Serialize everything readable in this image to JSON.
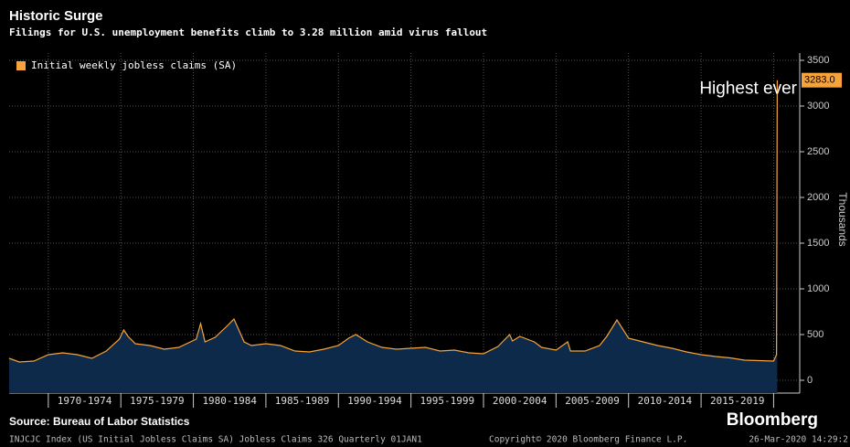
{
  "chart_data": {
    "type": "area",
    "title": "Historic Surge",
    "subtitle": "Filings for U.S. unemployment benefits climb to 3.28 million amid virus fallout",
    "y_axis_label": "Thousands",
    "source": "Source: Bureau of Labor Statistics",
    "brand": "Bloomberg",
    "footer_left": "INJCJC Index (US Initial Jobless Claims SA) Jobless Claims 326  Quarterly 01JAN1",
    "footer_center": "Copyright© 2020 Bloomberg Finance L.P.",
    "footer_right": "26-Mar-2020 14:29:2",
    "annotation": "Highest ever",
    "legend": "top-left",
    "grid": true,
    "series": [
      {
        "name": "Initial weekly jobless claims (SA)",
        "color": "#f5a33a",
        "fill": "#0e2a4a",
        "x": [
          1967.3,
          1968,
          1969,
          1970,
          1971,
          1972,
          1973,
          1974,
          1974.9,
          1975.2,
          1975.5,
          1976,
          1977,
          1978,
          1979,
          1980.2,
          1980.5,
          1980.8,
          1981.5,
          1982.3,
          1982.8,
          1983.5,
          1984,
          1985,
          1986,
          1987,
          1988,
          1989,
          1990,
          1990.7,
          1991.2,
          1992,
          1993,
          1994,
          1995,
          1996,
          1997,
          1998,
          1999,
          2000,
          2001,
          2001.8,
          2002,
          2002.5,
          2003.5,
          2004,
          2005,
          2005.8,
          2006,
          2007,
          2008,
          2008.5,
          2009.2,
          2010,
          2011,
          2012,
          2013,
          2014,
          2015,
          2016,
          2017,
          2018,
          2019,
          2020,
          2020.2,
          2020.25
        ],
        "values": [
          240,
          200,
          210,
          280,
          300,
          280,
          240,
          320,
          450,
          550,
          480,
          400,
          380,
          340,
          360,
          450,
          620,
          420,
          470,
          590,
          670,
          420,
          380,
          400,
          380,
          320,
          310,
          340,
          380,
          460,
          500,
          420,
          360,
          340,
          350,
          360,
          320,
          330,
          300,
          290,
          370,
          500,
          430,
          480,
          420,
          360,
          330,
          420,
          320,
          320,
          380,
          480,
          660,
          460,
          420,
          380,
          350,
          310,
          280,
          260,
          245,
          220,
          215,
          210,
          280,
          3283
        ],
        "value_labels": [
          null,
          null,
          null,
          null,
          null,
          null,
          null,
          null,
          null,
          null,
          null,
          null,
          null,
          null,
          null,
          null,
          null,
          null,
          null,
          null,
          null,
          null,
          null,
          null,
          null,
          null,
          null,
          null,
          null,
          null,
          null,
          null,
          null,
          null,
          null,
          null,
          null,
          null,
          null,
          null,
          null,
          null,
          null,
          null,
          null,
          null,
          null,
          null,
          null,
          null,
          null,
          null,
          null,
          null,
          null,
          null,
          null,
          null,
          null,
          null,
          null,
          null,
          null,
          null,
          null,
          "3283.0"
        ]
      }
    ],
    "xlim": [
      1967.3,
      2021.8
    ],
    "xticks": [
      {
        "value": 1972.5,
        "label": "1970-1974"
      },
      {
        "value": 1977.5,
        "label": "1975-1979"
      },
      {
        "value": 1982.5,
        "label": "1980-1984"
      },
      {
        "value": 1987.5,
        "label": "1985-1989"
      },
      {
        "value": 1992.5,
        "label": "1990-1994"
      },
      {
        "value": 1997.5,
        "label": "1995-1999"
      },
      {
        "value": 2002.5,
        "label": "2000-2004"
      },
      {
        "value": 2007.5,
        "label": "2005-2009"
      },
      {
        "value": 2012.5,
        "label": "2010-2014"
      },
      {
        "value": 2017.5,
        "label": "2015-2019"
      }
    ],
    "ylim": [
      -140,
      3580
    ],
    "yticks": [
      0,
      500,
      1000,
      1500,
      2000,
      2500,
      3000,
      3500
    ]
  }
}
